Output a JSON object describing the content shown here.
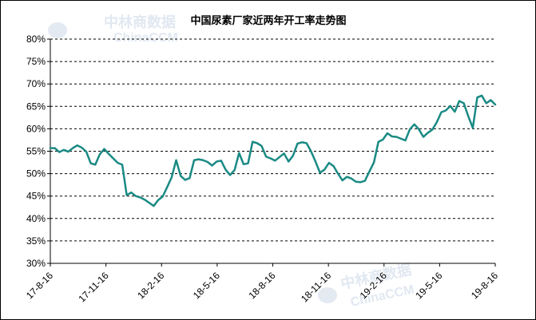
{
  "chart_data": {
    "type": "line",
    "title": "中国尿素厂家近两年开工率走势图",
    "xlabel": "",
    "ylabel": "",
    "ylim": [
      0.3,
      0.8
    ],
    "y_ticks": [
      "30%",
      "35%",
      "40%",
      "45%",
      "50%",
      "55%",
      "60%",
      "65%",
      "70%",
      "75%",
      "80%"
    ],
    "y_tick_values": [
      0.3,
      0.35,
      0.4,
      0.45,
      0.5,
      0.55,
      0.6,
      0.65,
      0.7,
      0.75,
      0.8
    ],
    "x_ticks": [
      "17-8-16",
      "17-11-16",
      "18-2-16",
      "18-5-16",
      "18-8-16",
      "18-11-16",
      "19-2-16",
      "19-5-16",
      "19-8-16"
    ],
    "grid": "horizontal dashed",
    "line_color": "#1a8a84",
    "series": [
      {
        "values": [
          0.557,
          0.557,
          0.548,
          0.553,
          0.549,
          0.557,
          0.563,
          0.558,
          0.549,
          0.523,
          0.52,
          0.543,
          0.555,
          0.544,
          0.534,
          0.524,
          0.52,
          0.452,
          0.458,
          0.45,
          0.447,
          0.442,
          0.435,
          0.428,
          0.441,
          0.449,
          0.47,
          0.492,
          0.53,
          0.495,
          0.486,
          0.49,
          0.53,
          0.532,
          0.53,
          0.526,
          0.518,
          0.527,
          0.529,
          0.509,
          0.497,
          0.508,
          0.546,
          0.521,
          0.523,
          0.571,
          0.568,
          0.562,
          0.538,
          0.534,
          0.529,
          0.537,
          0.545,
          0.527,
          0.54,
          0.567,
          0.57,
          0.568,
          0.55,
          0.527,
          0.502,
          0.509,
          0.524,
          0.517,
          0.5,
          0.485,
          0.493,
          0.489,
          0.482,
          0.481,
          0.484,
          0.505,
          0.525,
          0.571,
          0.576,
          0.59,
          0.583,
          0.582,
          0.578,
          0.574,
          0.599,
          0.61,
          0.599,
          0.582,
          0.591,
          0.598,
          0.615,
          0.637,
          0.641,
          0.651,
          0.638,
          0.662,
          0.657,
          0.628,
          0.602,
          0.67,
          0.674,
          0.657,
          0.664,
          0.654
        ]
      }
    ]
  },
  "watermark": {
    "top_cn": "中林商数据",
    "top_en": "ChinaCCM",
    "bottom_cn": "中林商数据",
    "bottom_en": "ChinaCCM"
  }
}
